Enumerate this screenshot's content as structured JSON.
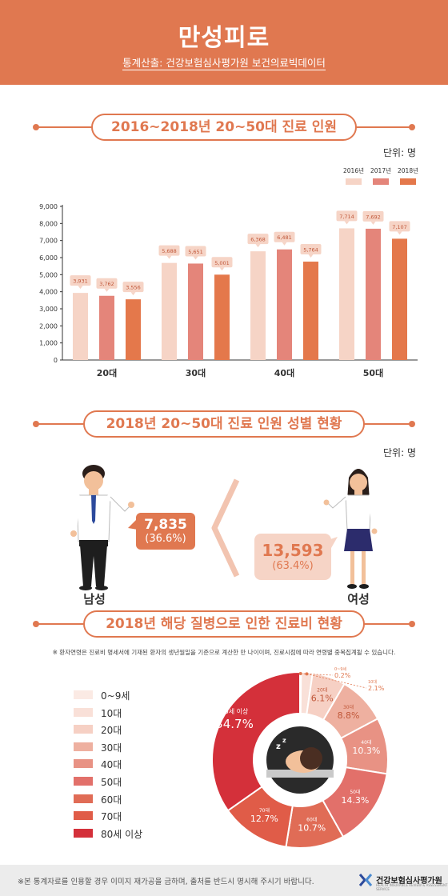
{
  "header": {
    "title": "만성피로",
    "source": "통계산출: 건강보험심사평가원 보건의료빅데이터"
  },
  "section1": {
    "title": "2016~2018년 20~50대 진료 인원",
    "unit": "단위: 명"
  },
  "section2": {
    "title": "2018년 20~50대 진료 인원 성별 현황",
    "unit": "단위: 명",
    "male": {
      "label": "남성",
      "value": "7,835",
      "percent": "(36.6%)"
    },
    "female": {
      "label": "여성",
      "value": "13,593",
      "percent": "(63.4%)"
    }
  },
  "section3": {
    "title": "2018년 해당 질병으로 인한 진료비 현황",
    "note": "※ 환자연령은 진료비 명세서에 기재된 환자의 생년월일을 기준으로 계산한 만 나이이며, 진료시점에 따라 연령별 중복집계될 수 있습니다."
  },
  "footer": {
    "note": "※본 통계자료를 인용할 경우 이미지 재가공을 금하며, 출처를 반드시 명시해 주시기 바랍니다.",
    "org": "건강보험심사평가원",
    "org_sub": "HEALTH INSURANCE REVIEW & ASSESSMENT SERVICE"
  },
  "colors": {
    "brand": "#e07850",
    "y2016": "#f6d4c6",
    "y2017": "#e4857a",
    "y2018": "#e4784b"
  },
  "chart_data": [
    {
      "type": "bar",
      "categories": [
        "20대",
        "30대",
        "40대",
        "50대"
      ],
      "series": [
        {
          "name": "2016년",
          "values": [
            3931,
            5688,
            6368,
            7714
          ],
          "labels": [
            "3,931",
            "5,688",
            "6,368",
            "7,714"
          ],
          "color": "#f6d4c6"
        },
        {
          "name": "2017년",
          "values": [
            3762,
            5651,
            6481,
            7692
          ],
          "labels": [
            "3,762",
            "5,651",
            "6,481",
            "7,692"
          ],
          "color": "#e4857a"
        },
        {
          "name": "2018년",
          "values": [
            3556,
            5001,
            5764,
            7107
          ],
          "labels": [
            "3,556",
            "5,001",
            "5,764",
            "7,107"
          ],
          "color": "#e4784b"
        }
      ],
      "ylim": [
        0,
        9000
      ],
      "yticks": [
        "0",
        "1,000",
        "2,000",
        "3,000",
        "4,000",
        "5,000",
        "6,000",
        "7,000",
        "8,000",
        "9,000"
      ],
      "legend": "top-right",
      "grid": false
    },
    {
      "type": "pie",
      "categories": [
        "0~9세",
        "10대",
        "20대",
        "30대",
        "40대",
        "50대",
        "60대",
        "70대",
        "80세 이상"
      ],
      "values": [
        0.2,
        2.1,
        6.1,
        8.8,
        10.3,
        14.3,
        10.7,
        12.7,
        34.7
      ],
      "labels": [
        "0.2%",
        "2.1%",
        "6.1%",
        "8.8%",
        "10.3%",
        "14.3%",
        "10.7%",
        "12.7%",
        "34.7%"
      ],
      "slice_labels": [
        "0~9세",
        "10대",
        "20대",
        "30대",
        "40대",
        "50대",
        "60대",
        "70대",
        "80세 이상"
      ],
      "colors": [
        "#fbeae4",
        "#f9e0d8",
        "#f6d0c4",
        "#eeb0a0",
        "#e89284",
        "#e2706a",
        "#e06c56",
        "#e05c48",
        "#d4303a"
      ],
      "legend": "left"
    }
  ]
}
